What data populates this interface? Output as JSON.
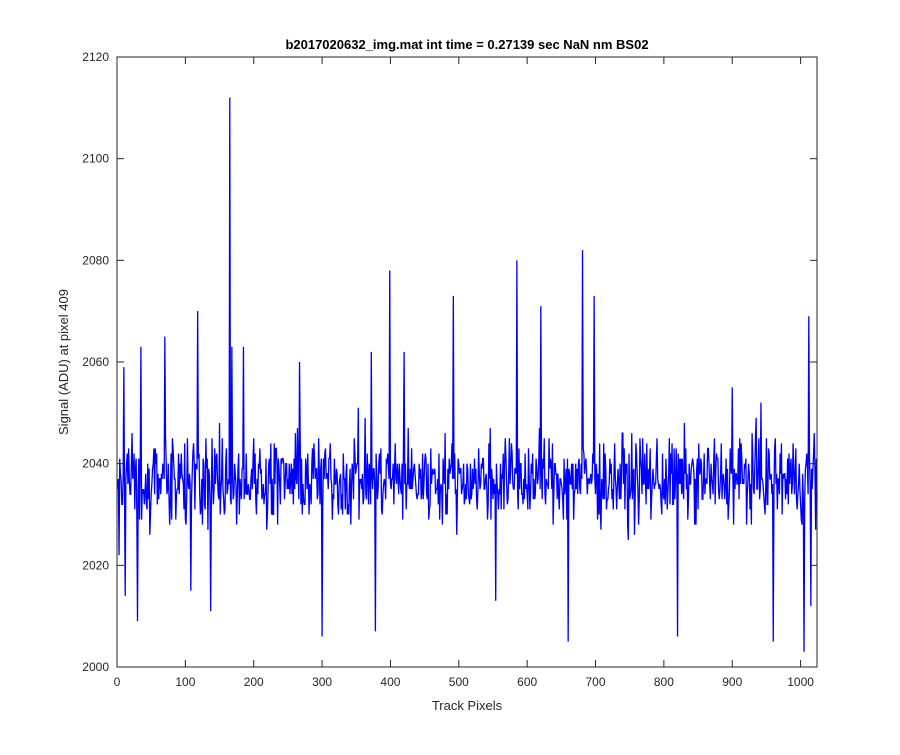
{
  "chart_data": {
    "type": "line",
    "title": "b2017020632_img.mat int time = 0.27139 sec  NaN nm BS02",
    "xlabel": "Track Pixels",
    "ylabel": "Signal (ADU) at pixel 409",
    "xlim": [
      0,
      1024
    ],
    "ylim": [
      2000,
      2120
    ],
    "x_ticks": [
      "0",
      "100",
      "200",
      "300",
      "400",
      "500",
      "600",
      "700",
      "800",
      "900",
      "1000"
    ],
    "y_ticks": [
      "2000",
      "2020",
      "2040",
      "2060",
      "2080",
      "2100",
      "2120"
    ],
    "grid": false,
    "series_color": "#0000ff",
    "series": [
      {
        "name": "",
        "x_start": 1,
        "x_step": 1,
        "n_points": 1024,
        "baseline_mean": 2037,
        "noise_range": [
          2003,
          2070
        ],
        "notable_points": [
          {
            "x": 3,
            "y": 2022
          },
          {
            "x": 10,
            "y": 2059
          },
          {
            "x": 12,
            "y": 2014
          },
          {
            "x": 30,
            "y": 2009
          },
          {
            "x": 35,
            "y": 2063
          },
          {
            "x": 70,
            "y": 2065
          },
          {
            "x": 108,
            "y": 2015
          },
          {
            "x": 118,
            "y": 2070
          },
          {
            "x": 137,
            "y": 2011
          },
          {
            "x": 150,
            "y": 2048
          },
          {
            "x": 165,
            "y": 2112
          },
          {
            "x": 168,
            "y": 2063
          },
          {
            "x": 185,
            "y": 2063
          },
          {
            "x": 267,
            "y": 2060
          },
          {
            "x": 300,
            "y": 2006
          },
          {
            "x": 353,
            "y": 2051
          },
          {
            "x": 372,
            "y": 2062
          },
          {
            "x": 378,
            "y": 2007
          },
          {
            "x": 399,
            "y": 2078
          },
          {
            "x": 420,
            "y": 2062
          },
          {
            "x": 492,
            "y": 2073
          },
          {
            "x": 554,
            "y": 2013
          },
          {
            "x": 585,
            "y": 2080
          },
          {
            "x": 620,
            "y": 2071
          },
          {
            "x": 660,
            "y": 2005
          },
          {
            "x": 681,
            "y": 2082
          },
          {
            "x": 698,
            "y": 2073
          },
          {
            "x": 748,
            "y": 2025
          },
          {
            "x": 820,
            "y": 2006
          },
          {
            "x": 900,
            "y": 2055
          },
          {
            "x": 942,
            "y": 2052
          },
          {
            "x": 960,
            "y": 2005
          },
          {
            "x": 1005,
            "y": 2003
          },
          {
            "x": 1012,
            "y": 2069
          },
          {
            "x": 1015,
            "y": 2012
          },
          {
            "x": 1020,
            "y": 2046
          }
        ]
      }
    ]
  }
}
